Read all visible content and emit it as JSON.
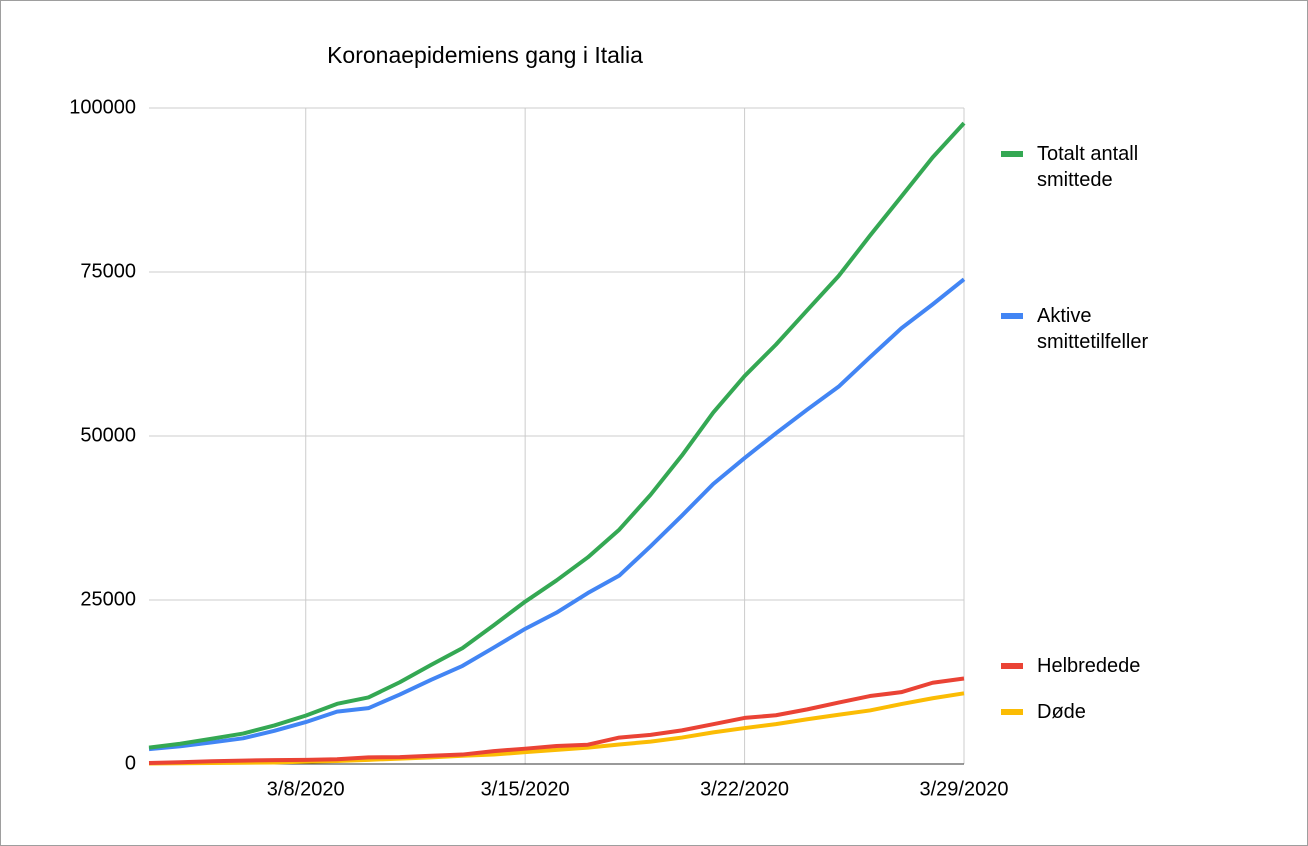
{
  "chart_data": {
    "type": "line",
    "title": "Koronaepidemiens gang i Italia",
    "x": [
      "3/3/2020",
      "3/4/2020",
      "3/5/2020",
      "3/6/2020",
      "3/7/2020",
      "3/8/2020",
      "3/9/2020",
      "3/10/2020",
      "3/11/2020",
      "3/12/2020",
      "3/13/2020",
      "3/14/2020",
      "3/15/2020",
      "3/16/2020",
      "3/17/2020",
      "3/18/2020",
      "3/19/2020",
      "3/20/2020",
      "3/21/2020",
      "3/22/2020",
      "3/23/2020",
      "3/24/2020",
      "3/25/2020",
      "3/26/2020",
      "3/27/2020",
      "3/28/2020",
      "3/29/2020"
    ],
    "xlim": [
      "3/3/2020",
      "3/29/2020"
    ],
    "xticks": [
      "3/8/2020",
      "3/15/2020",
      "3/22/2020",
      "3/29/2020"
    ],
    "ylim": [
      0,
      100000
    ],
    "yticks": [
      0,
      25000,
      50000,
      75000,
      100000
    ],
    "grid": true,
    "legend": "right",
    "series": [
      {
        "name": "Totalt antall smittede",
        "color": "#34a853",
        "values": [
          2502,
          3089,
          3858,
          4636,
          5883,
          7375,
          9172,
          10149,
          12462,
          15113,
          17660,
          21157,
          24747,
          27980,
          31506,
          35713,
          41035,
          47021,
          53578,
          59138,
          63927,
          69176,
          74386,
          80539,
          86498,
          92472,
          97689
        ]
      },
      {
        "name": "Aktive smittetilfeller",
        "color": "#4285f4",
        "values": [
          2263,
          2706,
          3296,
          3916,
          5061,
          6387,
          7985,
          8514,
          10590,
          12839,
          14955,
          17750,
          20603,
          23073,
          26062,
          28710,
          33190,
          37860,
          42681,
          46638,
          50418,
          54030,
          57521,
          62013,
          66414,
          70065,
          73880
        ]
      },
      {
        "name": "Helbredede",
        "color": "#ea4335",
        "values": [
          160,
          276,
          414,
          523,
          589,
          622,
          724,
          1004,
          1045,
          1258,
          1439,
          1966,
          2335,
          2749,
          2941,
          4025,
          4440,
          5129,
          6072,
          7024,
          7432,
          8326,
          9362,
          10361,
          10950,
          12384,
          13030
        ]
      },
      {
        "name": "Døde",
        "color": "#fbbc04",
        "values": [
          79,
          107,
          148,
          197,
          233,
          366,
          463,
          631,
          827,
          1016,
          1266,
          1441,
          1809,
          2158,
          2503,
          2978,
          3405,
          4032,
          4825,
          5476,
          6077,
          6820,
          7503,
          8165,
          9134,
          10023,
          10779
        ]
      }
    ]
  }
}
